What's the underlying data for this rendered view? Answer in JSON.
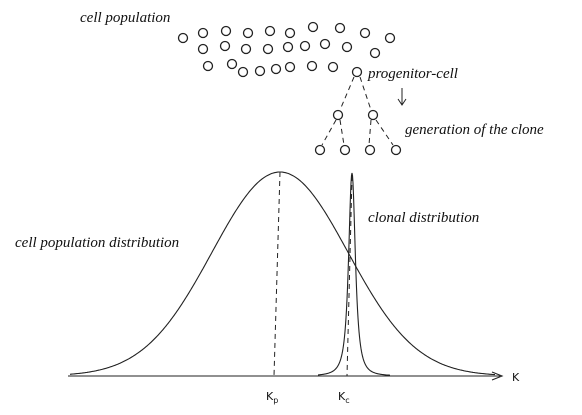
{
  "labels": {
    "cell_population": "cell population",
    "progenitor": "progenitor-cell",
    "generation": "generation of the clone",
    "population_distribution": "cell population distribution",
    "clonal_distribution": "clonal distribution"
  },
  "axis": {
    "label": "K",
    "ticks": [
      {
        "main": "K",
        "sub": "p"
      },
      {
        "main": "K",
        "sub": "c"
      }
    ]
  }
}
